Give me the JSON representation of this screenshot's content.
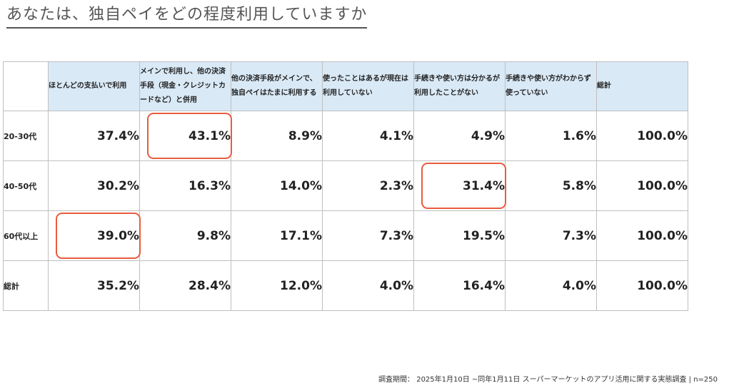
{
  "chart_data": {
    "type": "table",
    "title": "あなたは、独自ペイをどの程度利用していますか",
    "columns": [
      "ほとんどの支払いで利用",
      "メインで利用し、他の決済手段（現金・クレジットカードなど）と併用",
      "他の決済手段がメインで、独自ペイはたまに利用する",
      "使ったことはあるが現在は利用していない",
      "手続きや使い方は分かるが利用したことがない",
      "手続きや使い方がわからず使っていない",
      "総計"
    ],
    "rows": [
      {
        "label": "20-30代",
        "values": [
          "37.4%",
          "43.1%",
          "8.9%",
          "4.1%",
          "4.9%",
          "1.6%",
          "100.0%"
        ]
      },
      {
        "label": "40-50代",
        "values": [
          "30.2%",
          "16.3%",
          "14.0%",
          "2.3%",
          "31.4%",
          "5.8%",
          "100.0%"
        ]
      },
      {
        "label": "60代以上",
        "values": [
          "39.0%",
          "9.8%",
          "17.1%",
          "7.3%",
          "19.5%",
          "7.3%",
          "100.0%"
        ]
      },
      {
        "label": "総計",
        "values": [
          "35.2%",
          "28.4%",
          "12.0%",
          "4.0%",
          "16.4%",
          "4.0%",
          "100.0%"
        ]
      }
    ],
    "highlights": [
      {
        "row": 0,
        "col": 1
      },
      {
        "row": 1,
        "col": 4
      },
      {
        "row": 2,
        "col": 0
      }
    ],
    "highlight_color": "#e85c3c",
    "header_bg": "#d9e9f6"
  },
  "footer": "調査期間： 2025年1月10日 ~同年1月11日 スーパーマーケットのアプリ活用に関する実態調査 | n=250"
}
